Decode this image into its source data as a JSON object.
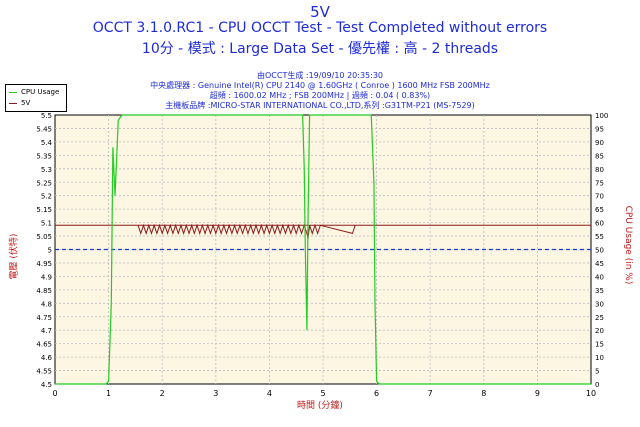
{
  "header": {
    "title": "5V",
    "subtitle": "OCCT 3.1.0.RC1 - CPU OCCT Test - Test Completed without errors",
    "subtitle2": "10分 - 模式 : Large Data Set - 優先權 : 高 - 2 threads"
  },
  "info": {
    "line1": "由OCCT生成 :19/09/10 20:35:30",
    "line2": "中央處理器 : Genuine Intel(R) CPU 2140 @ 1.60GHz ( Conroe ) 1600 MHz FSB 200MHz",
    "line3": "超頻 : 1600.02 MHz ; FSB 200MHz | 過頻 : 0.04 ( 0.83%)",
    "line4": "主機板品牌 :MICRO-STAR INTERNATIONAL CO.,LTD,系列 :G31TM-P21 (MS-7529)"
  },
  "colors": {
    "plot_bg": "#fdf6e3",
    "grid": "#bdbdbd",
    "cpu": "#22cc22",
    "voltage": "#8b1a1a",
    "reference": "#1a3dcc",
    "title": "#1e2bd6",
    "axis_label": "#c01a1a"
  },
  "chart_data": {
    "type": "line",
    "title": "5V",
    "xlabel": "時間 (分鐘)",
    "ylabel_left": "電壓 (伏特)",
    "ylabel_right": "CPU Usage (in %)",
    "xlim": [
      0,
      10
    ],
    "ylim_left": [
      4.5,
      5.5
    ],
    "ylim_right": [
      0,
      100
    ],
    "x_ticks": [
      "0",
      "1",
      "2",
      "3",
      "4",
      "5",
      "6",
      "7",
      "8",
      "9",
      "10"
    ],
    "y_ticks_left": [
      "4.5",
      "4.55",
      "4.6",
      "4.65",
      "4.7",
      "4.75",
      "4.8",
      "4.85",
      "4.9",
      "4.95",
      "5",
      "5.05",
      "5.1",
      "5.15",
      "5.2",
      "5.25",
      "5.3",
      "5.35",
      "5.4",
      "5.45",
      "5.5"
    ],
    "y_ticks_right": [
      "0",
      "5",
      "10",
      "15",
      "20",
      "25",
      "30",
      "35",
      "40",
      "45",
      "50",
      "55",
      "60",
      "65",
      "70",
      "75",
      "80",
      "85",
      "90",
      "95",
      "100"
    ],
    "reference_line": 5.0,
    "legend": [
      "CPU Usage",
      "5V"
    ],
    "legend_position": "top-left",
    "series": [
      {
        "name": "CPU Usage",
        "axis": "right",
        "x": [
          0,
          0.95,
          1.0,
          1.05,
          1.08,
          1.12,
          1.18,
          1.25,
          1.5,
          2,
          2.5,
          3,
          3.5,
          4,
          4.5,
          4.62,
          4.65,
          4.67,
          4.7,
          4.72,
          4.75,
          4.8,
          5,
          5.5,
          5.9,
          5.95,
          5.97,
          6.0,
          6.05,
          6.5,
          10
        ],
        "y": [
          0,
          0,
          1,
          30,
          88,
          70,
          98,
          100,
          100,
          100,
          100,
          100,
          100,
          100,
          100,
          100,
          80,
          50,
          20,
          60,
          100,
          100,
          100,
          100,
          100,
          75,
          30,
          1,
          0,
          0,
          0
        ]
      },
      {
        "name": "5V",
        "axis": "left",
        "x": [
          1.55,
          1.6,
          1.65,
          1.7,
          1.75,
          1.8,
          1.85,
          1.9,
          1.95,
          2.0,
          2.05,
          2.1,
          2.15,
          2.2,
          2.25,
          2.3,
          2.35,
          2.4,
          2.45,
          2.5,
          2.55,
          2.6,
          2.65,
          2.7,
          2.75,
          2.8,
          2.85,
          2.9,
          2.95,
          3.0,
          3.05,
          3.1,
          3.15,
          3.2,
          3.25,
          3.3,
          3.35,
          3.4,
          3.45,
          3.5,
          3.55,
          3.6,
          3.65,
          3.7,
          3.75,
          3.8,
          3.85,
          3.9,
          3.95,
          4.0,
          4.05,
          4.1,
          4.15,
          4.2,
          4.25,
          4.3,
          4.35,
          4.4,
          4.45,
          4.5,
          4.55,
          4.6,
          4.65,
          4.7,
          4.72,
          4.75,
          4.8,
          4.85,
          4.9,
          4.95,
          5.55,
          5.6
        ],
        "y": [
          5.09,
          5.06,
          5.09,
          5.06,
          5.09,
          5.06,
          5.09,
          5.06,
          5.09,
          5.06,
          5.09,
          5.06,
          5.09,
          5.06,
          5.09,
          5.06,
          5.09,
          5.06,
          5.09,
          5.06,
          5.09,
          5.06,
          5.09,
          5.06,
          5.09,
          5.06,
          5.09,
          5.06,
          5.09,
          5.06,
          5.09,
          5.06,
          5.09,
          5.06,
          5.09,
          5.06,
          5.09,
          5.06,
          5.09,
          5.06,
          5.09,
          5.06,
          5.09,
          5.06,
          5.09,
          5.06,
          5.09,
          5.06,
          5.09,
          5.06,
          5.09,
          5.06,
          5.09,
          5.06,
          5.09,
          5.06,
          5.09,
          5.06,
          5.09,
          5.06,
          5.09,
          5.06,
          5.09,
          5.06,
          5.04,
          5.09,
          5.06,
          5.09,
          5.06,
          5.09,
          5.06,
          5.09
        ],
        "baseline": 5.09
      }
    ]
  }
}
